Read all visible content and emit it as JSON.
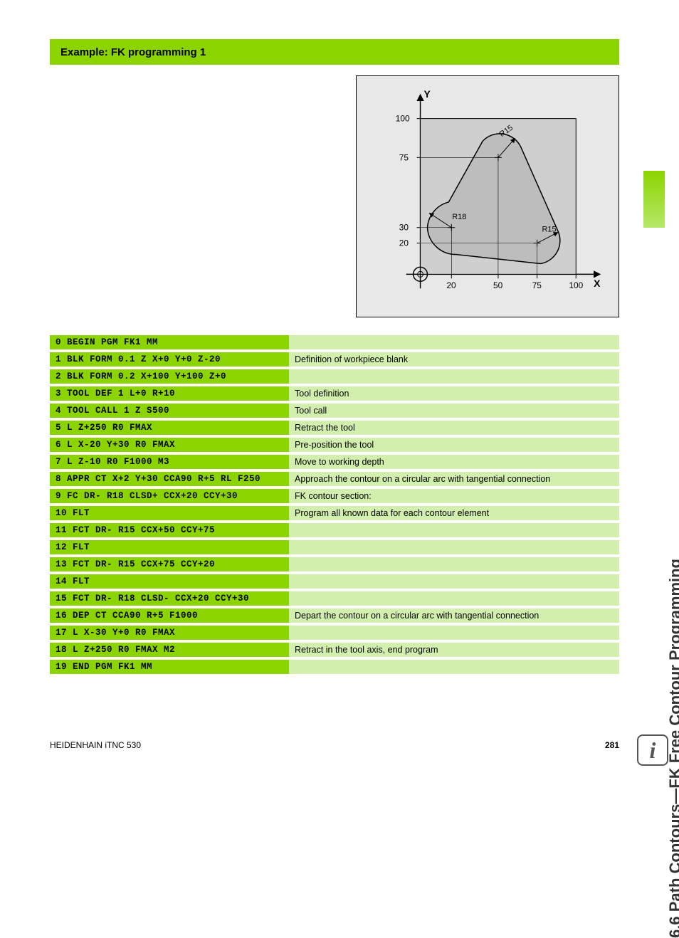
{
  "header": {
    "title": "Example: FK programming 1"
  },
  "side_title": "6.6 Path Contours—FK Free Contour Programming",
  "footer": {
    "left": "HEIDENHAIN iTNC 530",
    "page": "281"
  },
  "diagram": {
    "axes": {
      "x_label": "X",
      "y_label": "Y"
    },
    "y_ticks": [
      "100",
      "75",
      "30",
      "20"
    ],
    "x_ticks": [
      "20",
      "50",
      "75",
      "100"
    ],
    "radius_labels": [
      "R15",
      "R18",
      "R15"
    ],
    "background": "#e8e8e8",
    "shape_fill": "#cfcfcf",
    "line_color": "#000000"
  },
  "colors": {
    "code_bg": "#8cd400",
    "desc_bg": "#d3efad",
    "accent": "#8cd400"
  },
  "program": [
    {
      "code": "0 BEGIN PGM FK1 MM",
      "desc": ""
    },
    {
      "code": "1 BLK FORM 0.1 Z X+0 Y+0 Z-20",
      "desc": "Definition of workpiece blank"
    },
    {
      "code": "2 BLK FORM 0.2 X+100 Y+100 Z+0",
      "desc": ""
    },
    {
      "code": "3 TOOL DEF 1 L+0 R+10",
      "desc": "Tool definition"
    },
    {
      "code": "4 TOOL CALL 1 Z S500",
      "desc": "Tool call"
    },
    {
      "code": "5 L Z+250 R0 FMAX",
      "desc": "Retract the tool"
    },
    {
      "code": "6 L X-20 Y+30 R0 FMAX",
      "desc": "Pre-position the tool"
    },
    {
      "code": "7 L Z-10 R0 F1000 M3",
      "desc": "Move to working depth"
    },
    {
      "code": "8 APPR CT X+2 Y+30 CCA90 R+5 RL F250",
      "desc": "Approach the contour on a circular arc with tangential connection"
    },
    {
      "code": "9 FC DR- R18 CLSD+ CCX+20 CCY+30",
      "desc": "FK contour section:"
    },
    {
      "code": "10 FLT",
      "desc": "Program all known data for each contour element"
    },
    {
      "code": "11 FCT DR- R15 CCX+50 CCY+75",
      "desc": ""
    },
    {
      "code": "12 FLT",
      "desc": ""
    },
    {
      "code": "13 FCT DR- R15 CCX+75 CCY+20",
      "desc": ""
    },
    {
      "code": "14 FLT",
      "desc": ""
    },
    {
      "code": "15 FCT DR- R18 CLSD- CCX+20 CCY+30",
      "desc": ""
    },
    {
      "code": "16 DEP CT CCA90 R+5 F1000",
      "desc": "Depart the contour on a circular arc with tangential connection"
    },
    {
      "code": "17 L X-30 Y+0 R0 FMAX",
      "desc": ""
    },
    {
      "code": "18 L Z+250 R0 FMAX M2",
      "desc": "Retract in the tool axis, end program"
    },
    {
      "code": "19 END PGM FK1 MM",
      "desc": ""
    }
  ]
}
